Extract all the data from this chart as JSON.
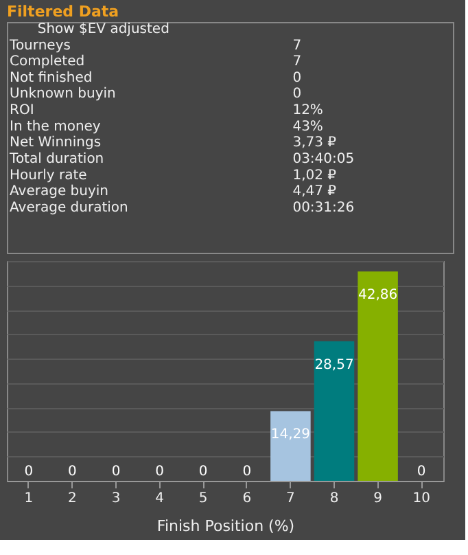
{
  "chart_data": [
    {
      "type": "other",
      "title": "Filtered Data",
      "annotations": [
        "Show $EV adjusted",
        "Tourneys",
        "7",
        "Completed",
        "7",
        "Not finished",
        "0",
        "Unknown buyin",
        "0",
        "ROI",
        "12%",
        "In the money",
        "43%",
        "Net Winnings",
        "3,73 ₽",
        "Total duration",
        "03:40:05",
        "Hourly rate",
        "1,02 ₽",
        "Average buyin",
        "4,47 ₽",
        "Average duration",
        "00:31:26"
      ]
    },
    {
      "type": "bar",
      "xlabel": "Finish Position (%)",
      "categories": [
        "1",
        "2",
        "3",
        "4",
        "5",
        "6",
        "7",
        "8",
        "9",
        "10"
      ],
      "values": [
        0,
        0,
        0,
        0,
        0,
        0,
        14.29,
        28.57,
        42.86,
        0
      ],
      "value_labels": [
        "0",
        "0",
        "0",
        "0",
        "0",
        "0",
        "14,29",
        "28,57",
        "42,86",
        "0"
      ],
      "colors": [
        "#d0d0d0",
        "#d0d0d0",
        "#d0d0d0",
        "#2a2a2a",
        "#d0d0d0",
        "#2a2a2a",
        "#a6c4e0",
        "#007c7e",
        "#86b000",
        "#d0d0d0"
      ],
      "grid": "y",
      "tick_labels": "x"
    }
  ]
}
